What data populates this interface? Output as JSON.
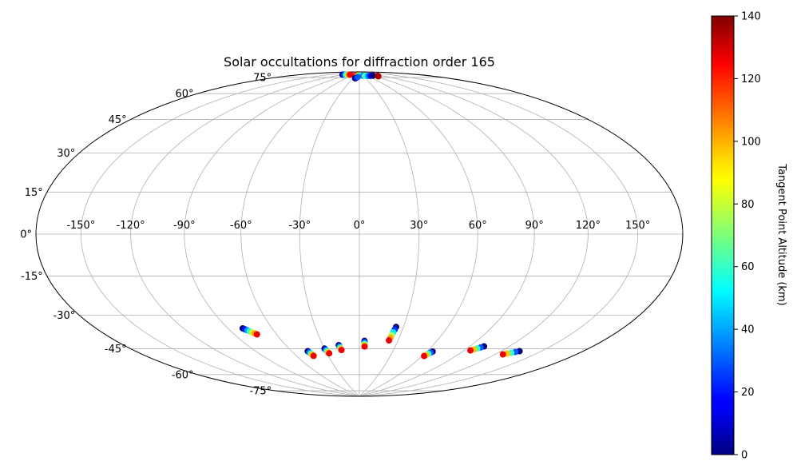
{
  "chart_data": {
    "type": "scatter",
    "projection": "hammer",
    "title": "Solar occultations for diffraction order 165",
    "xlabel": "",
    "ylabel": "",
    "x_tick_labels": [
      "-150°",
      "-120°",
      "-90°",
      "-60°",
      "-30°",
      "0°",
      "30°",
      "60°",
      "90°",
      "120°",
      "150°"
    ],
    "x_ticks": [
      -150,
      -120,
      -90,
      -60,
      -30,
      0,
      30,
      60,
      90,
      120,
      150
    ],
    "y_tick_labels": [
      "-75°",
      "-60°",
      "-45°",
      "-30°",
      "-15°",
      "0°",
      "15°",
      "30°",
      "45°",
      "60°",
      "75°"
    ],
    "y_ticks": [
      -75,
      -60,
      -45,
      -30,
      -15,
      0,
      15,
      30,
      45,
      60,
      75
    ],
    "xlim": [
      -180,
      180
    ],
    "ylim": [
      -90,
      90
    ],
    "grid": true,
    "colorbar": {
      "label": "Tangent Point Altitude (km)",
      "colormap": "jet",
      "range": [
        0,
        140
      ],
      "tick_labels": [
        "0",
        "20",
        "40",
        "60",
        "80",
        "100",
        "120",
        "140"
      ],
      "ticks": [
        0,
        20,
        40,
        60,
        80,
        100,
        120,
        140
      ]
    },
    "tracks": [
      {
        "lon": [
          -80,
          -79,
          -78,
          -77,
          -76,
          -75,
          -74
        ],
        "lat": [
          -46,
          -46.6,
          -47.2,
          -47.8,
          -48.4,
          -49.0,
          -49.6
        ],
        "alt": [
          0,
          20,
          40,
          60,
          80,
          100,
          125
        ]
      },
      {
        "lon": [
          -46,
          -45.5,
          -45,
          -44.5,
          -44
        ],
        "lat": [
          -60.5,
          -61.2,
          -61.9,
          -62.6,
          -63.3
        ],
        "alt": [
          0,
          30,
          60,
          95,
          125
        ]
      },
      {
        "lon": [
          -30,
          -29.5,
          -29,
          -28.5,
          -28
        ],
        "lat": [
          -59.5,
          -60.2,
          -60.9,
          -61.6,
          -62.3
        ],
        "alt": [
          0,
          30,
          60,
          95,
          125
        ]
      },
      {
        "lon": [
          -17,
          -16.7,
          -16.4,
          -16.1,
          -15.8
        ],
        "lat": [
          -57.8,
          -58.5,
          -59.2,
          -59.9,
          -60.6
        ],
        "alt": [
          0,
          30,
          60,
          95,
          125
        ]
      },
      {
        "lon": [
          4,
          4.1,
          4.2,
          4.3,
          4.4
        ],
        "lat": [
          -55.5,
          -56.3,
          -57.1,
          -57.9,
          -58.7
        ],
        "alt": [
          0,
          30,
          60,
          95,
          125
        ]
      },
      {
        "lon": [
          25,
          24.6,
          24.2,
          23.8,
          23.4,
          23.0
        ],
        "lat": [
          -47.5,
          -49.0,
          -50.5,
          -52.0,
          -53.5,
          -55.0
        ],
        "alt": [
          0,
          25,
          50,
          75,
          100,
          125
        ]
      },
      {
        "lon": [
          65,
          64.2,
          63.4,
          62.6,
          61.8
        ],
        "lat": [
          -59.8,
          -60.5,
          -61.2,
          -61.9,
          -62.6
        ],
        "alt": [
          0,
          30,
          60,
          95,
          125
        ]
      },
      {
        "lon": [
          101,
          99.5,
          98,
          96.5,
          95
        ],
        "lat": [
          -54.2,
          -54.9,
          -55.6,
          -56.3,
          -57.0
        ],
        "alt": [
          0,
          30,
          60,
          95,
          125
        ]
      },
      {
        "lon": [
          134,
          132,
          130,
          128,
          126
        ],
        "lat": [
          -53.3,
          -54.0,
          -54.7,
          -55.4,
          -56.1
        ],
        "alt": [
          0,
          30,
          60,
          95,
          125
        ]
      },
      {
        "lon": [
          -120,
          -112,
          -104,
          -97,
          -90,
          -84
        ],
        "lat": [
          86.5,
          86.7,
          86.9,
          87.1,
          87.3,
          87.5
        ],
        "alt": [
          0,
          25,
          50,
          75,
          100,
          125
        ]
      },
      {
        "lon": [
          -30,
          -20,
          -10,
          0,
          10,
          20,
          30
        ],
        "lat": [
          87.2,
          87.3,
          87.4,
          87.5,
          87.4,
          87.3,
          87.2
        ],
        "alt": [
          125,
          110,
          95,
          80,
          65,
          50,
          35
        ]
      },
      {
        "lon": [
          40,
          50,
          60,
          70,
          80,
          90
        ],
        "lat": [
          87.0,
          86.9,
          86.8,
          86.7,
          86.6,
          86.5
        ],
        "alt": [
          70,
          55,
          40,
          25,
          10,
          0
        ]
      },
      {
        "lon": [
          -20,
          -15,
          -10
        ],
        "lat": [
          85.5,
          86.0,
          86.5
        ],
        "alt": [
          0,
          15,
          30
        ]
      },
      {
        "lon": [
          100,
          105
        ],
        "lat": [
          85.5,
          85.8
        ],
        "alt": [
          130,
          135
        ]
      }
    ]
  }
}
